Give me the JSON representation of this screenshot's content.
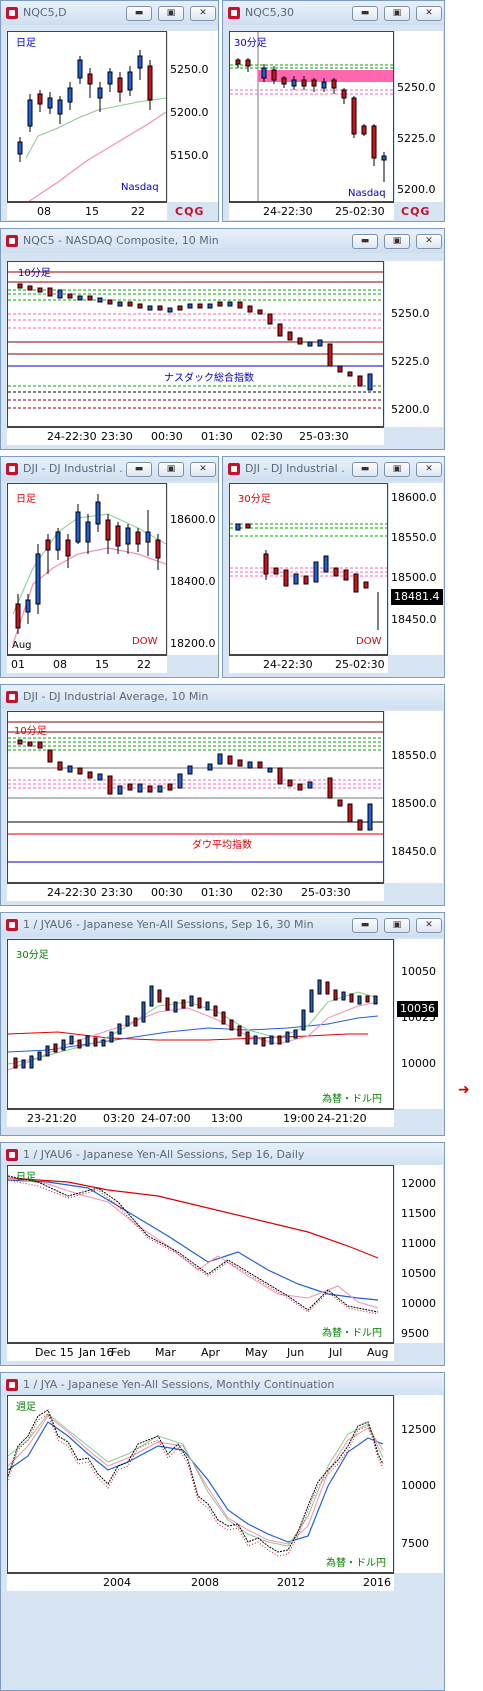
{
  "windows": [
    {
      "id": "w1",
      "title": "NQC5,D",
      "period": "日足",
      "name": "Nasdaq",
      "yticks": [
        "5250.0",
        "5200.0",
        "5150.0"
      ],
      "xticks": [
        "08",
        "15",
        "22"
      ],
      "cqg": "CQG"
    },
    {
      "id": "w2",
      "title": "NQC5,30",
      "period": "30分足",
      "name": "Nasdaq",
      "yticks": [
        "5250.0",
        "5225.0",
        "5200.0"
      ],
      "xticks": [
        "24-22:30",
        "25-02:30"
      ],
      "cqg": "CQG"
    },
    {
      "id": "w3",
      "title": "NQC5 - NASDAQ Composite, 10 Min",
      "period": "10分足",
      "name": "ナスダック総合指数",
      "yticks": [
        "5250.0",
        "5225.0",
        "5200.0"
      ],
      "xticks": [
        "24-22:30",
        "23:30",
        "00:30",
        "01:30",
        "02:30",
        "25-03:30"
      ]
    },
    {
      "id": "w4",
      "title": "DJI - DJ Industrial ...",
      "period": "日足",
      "name": "DOW",
      "yticks": [
        "18600.0",
        "18400.0",
        "18200.0"
      ],
      "xticks": [
        "01",
        "08",
        "15",
        "22"
      ],
      "month": "Aug"
    },
    {
      "id": "w5",
      "title": "DJI - DJ Industrial ...",
      "period": "30分足",
      "name": "DOW",
      "yticks": [
        "18600.0",
        "18550.0",
        "18500.0",
        "18450.0"
      ],
      "xticks": [
        "24-22:30",
        "25-02:30"
      ],
      "price_tag": "18481.4"
    },
    {
      "id": "w6",
      "title": "DJI - DJ Industrial Average, 10 Min",
      "period": "10分足",
      "name": "ダウ平均指数",
      "yticks": [
        "18550.0",
        "18500.0",
        "18450.0"
      ],
      "xticks": [
        "24-22:30",
        "23:30",
        "00:30",
        "01:30",
        "02:30",
        "25-03:30"
      ]
    },
    {
      "id": "w7",
      "title": "1 / JYAU6 - Japanese Yen-All Sessions, Sep 16, 30 Min",
      "period": "30分足",
      "name": "為替・ドル円",
      "yticks": [
        "10050",
        "10025",
        "10000"
      ],
      "xticks": [
        "23-21:20",
        "03:20",
        "24-07:00",
        "13:00",
        "19:00",
        "24-21:20"
      ],
      "price_tag": "10036"
    },
    {
      "id": "w8",
      "title": "1 / JYAU6 - Japanese Yen-All Sessions, Sep 16, Daily",
      "period": "日足",
      "name": "為替・ドル円",
      "yticks": [
        "12000",
        "11500",
        "11000",
        "10500",
        "10000",
        "9500"
      ],
      "xticks": [
        "Dec 15",
        "Jan 16",
        "Feb",
        "Mar",
        "Apr",
        "May",
        "Jun",
        "Jul",
        "Aug"
      ]
    },
    {
      "id": "w9",
      "title": "1 / JYA - Japanese Yen-All Sessions, Monthly Continuation",
      "period": "週足",
      "name": "為替・ドル円",
      "yticks": [
        "12500",
        "10000",
        "7500"
      ],
      "xticks": [
        "2004",
        "2008",
        "2012",
        "2016"
      ]
    }
  ],
  "buttons": {
    "minimize": "▬",
    "restore": "▣",
    "close": "✕"
  },
  "colors": {
    "frame": "#d7e4f2",
    "up": "#1f5fd8",
    "down": "#d0101a",
    "accent": "#c8102e"
  }
}
